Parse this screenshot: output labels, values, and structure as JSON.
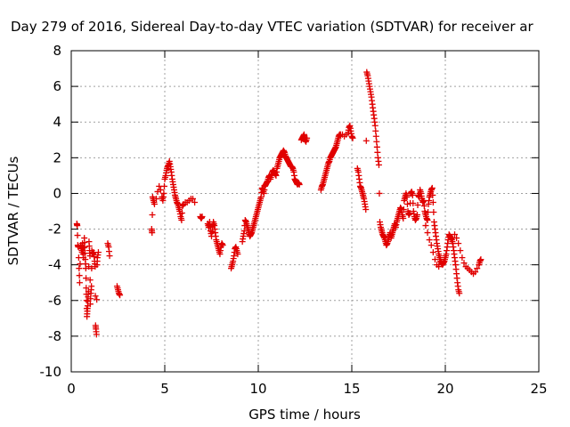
{
  "chart_data": {
    "type": "scatter",
    "title": "Day 279 of 2016, Sidereal Day-to-day VTEC variation (SDTVAR) for receiver ar",
    "xlabel": "GPS time / hours",
    "ylabel": "SDTVAR / TECUs",
    "xlim": [
      0,
      25
    ],
    "ylim": [
      -10,
      8
    ],
    "xticks": [
      0,
      5,
      10,
      15,
      20,
      25
    ],
    "yticks": [
      -10,
      -8,
      -6,
      -4,
      -2,
      0,
      2,
      4,
      6,
      8
    ],
    "grid": true,
    "marker": "+",
    "series_color": "#e00000",
    "trace_points": [
      [
        0.3,
        -1.7
      ],
      [
        0.32,
        -1.8
      ],
      [
        0.35,
        -2.9
      ],
      [
        0.38,
        -3.0
      ],
      [
        0.42,
        -4.2
      ],
      [
        0.45,
        -5.0
      ],
      [
        0.5,
        -2.9
      ],
      [
        0.55,
        -3.1
      ],
      [
        0.58,
        -3.3
      ],
      [
        0.6,
        -2.8
      ],
      [
        0.62,
        -3.2
      ],
      [
        0.65,
        -3.6
      ],
      [
        0.7,
        -2.5
      ],
      [
        0.72,
        -3.0
      ],
      [
        0.75,
        -3.7
      ],
      [
        0.78,
        -4.2
      ],
      [
        0.8,
        -5.3
      ],
      [
        0.82,
        -6.0
      ],
      [
        0.84,
        -6.9
      ],
      [
        0.86,
        -6.6
      ],
      [
        0.88,
        -6.3
      ],
      [
        0.9,
        -5.8
      ],
      [
        0.92,
        -5.5
      ],
      [
        0.95,
        -2.7
      ],
      [
        0.98,
        -3.2
      ],
      [
        1.0,
        -3.5
      ],
      [
        1.02,
        -6.2
      ],
      [
        1.05,
        -5.6
      ],
      [
        1.08,
        -5.2
      ],
      [
        1.1,
        -3.2
      ],
      [
        1.15,
        -3.4
      ],
      [
        1.2,
        -3.3
      ],
      [
        1.25,
        -3.8
      ],
      [
        1.28,
        -4.1
      ],
      [
        1.3,
        -7.4
      ],
      [
        1.32,
        -7.6
      ],
      [
        1.35,
        -7.9
      ],
      [
        1.38,
        -4.0
      ],
      [
        1.4,
        -3.6
      ],
      [
        1.45,
        -3.3
      ],
      [
        1.95,
        -2.8
      ],
      [
        2.0,
        -3.0
      ],
      [
        2.05,
        -3.5
      ],
      [
        2.45,
        -5.2
      ],
      [
        2.5,
        -5.4
      ],
      [
        2.55,
        -5.6
      ],
      [
        2.6,
        -5.7
      ],
      [
        4.3,
        -2.0
      ],
      [
        4.32,
        -2.2
      ],
      [
        4.35,
        -0.2
      ],
      [
        4.4,
        -0.4
      ],
      [
        4.45,
        -0.6
      ],
      [
        4.55,
        -0.3
      ],
      [
        4.62,
        0.1
      ],
      [
        4.7,
        0.4
      ],
      [
        4.78,
        0.2
      ],
      [
        4.85,
        -0.2
      ],
      [
        4.9,
        -0.4
      ],
      [
        4.95,
        0.0
      ],
      [
        5.0,
        0.8
      ],
      [
        5.05,
        1.0
      ],
      [
        5.1,
        1.3
      ],
      [
        5.15,
        1.5
      ],
      [
        5.2,
        1.6
      ],
      [
        5.25,
        1.8
      ],
      [
        5.3,
        1.5
      ],
      [
        5.35,
        1.2
      ],
      [
        5.4,
        0.8
      ],
      [
        5.45,
        0.5
      ],
      [
        5.5,
        0.2
      ],
      [
        5.55,
        -0.1
      ],
      [
        5.6,
        -0.3
      ],
      [
        5.65,
        -0.5
      ],
      [
        5.7,
        -0.6
      ],
      [
        5.75,
        -0.8
      ],
      [
        5.8,
        -1.0
      ],
      [
        5.85,
        -1.3
      ],
      [
        5.9,
        -1.5
      ],
      [
        5.95,
        -0.7
      ],
      [
        6.0,
        -0.6
      ],
      [
        6.1,
        -0.5
      ],
      [
        6.2,
        -0.5
      ],
      [
        6.3,
        -0.4
      ],
      [
        6.4,
        -0.3
      ],
      [
        6.5,
        -0.3
      ],
      [
        6.6,
        -0.5
      ],
      [
        6.9,
        -1.3
      ],
      [
        6.95,
        -1.4
      ],
      [
        7.0,
        -1.3
      ],
      [
        7.3,
        -1.7
      ],
      [
        7.35,
        -1.9
      ],
      [
        7.4,
        -1.6
      ],
      [
        7.45,
        -2.1
      ],
      [
        7.5,
        -2.4
      ],
      [
        7.55,
        -1.9
      ],
      [
        7.6,
        -1.6
      ],
      [
        7.65,
        -1.8
      ],
      [
        7.7,
        -2.2
      ],
      [
        7.75,
        -2.6
      ],
      [
        7.8,
        -2.8
      ],
      [
        7.85,
        -3.0
      ],
      [
        7.9,
        -3.2
      ],
      [
        7.95,
        -3.4
      ],
      [
        8.0,
        -3.0
      ],
      [
        8.05,
        -2.8
      ],
      [
        8.1,
        -2.9
      ],
      [
        8.55,
        -4.2
      ],
      [
        8.6,
        -4.0
      ],
      [
        8.65,
        -3.8
      ],
      [
        8.7,
        -3.5
      ],
      [
        8.75,
        -3.1
      ],
      [
        8.8,
        -3.0
      ],
      [
        8.85,
        -3.2
      ],
      [
        8.9,
        -3.4
      ],
      [
        9.15,
        -2.7
      ],
      [
        9.2,
        -2.4
      ],
      [
        9.25,
        -2.1
      ],
      [
        9.3,
        -1.5
      ],
      [
        9.35,
        -1.6
      ],
      [
        9.4,
        -1.8
      ],
      [
        9.45,
        -2.0
      ],
      [
        9.5,
        -2.2
      ],
      [
        9.55,
        -2.4
      ],
      [
        9.6,
        -2.3
      ],
      [
        9.65,
        -2.2
      ],
      [
        9.7,
        -2.0
      ],
      [
        9.75,
        -1.8
      ],
      [
        9.8,
        -1.6
      ],
      [
        9.85,
        -1.4
      ],
      [
        9.9,
        -1.2
      ],
      [
        9.95,
        -1.0
      ],
      [
        10.0,
        -0.8
      ],
      [
        10.05,
        -0.6
      ],
      [
        10.1,
        -0.4
      ],
      [
        10.15,
        -0.2
      ],
      [
        10.2,
        0.3
      ],
      [
        10.25,
        0.2
      ],
      [
        10.3,
        0.0
      ],
      [
        10.35,
        0.4
      ],
      [
        10.4,
        0.5
      ],
      [
        10.45,
        0.6
      ],
      [
        10.5,
        0.7
      ],
      [
        10.55,
        0.9
      ],
      [
        10.6,
        1.0
      ],
      [
        10.65,
        0.8
      ],
      [
        10.7,
        1.0
      ],
      [
        10.75,
        1.2
      ],
      [
        10.8,
        1.3
      ],
      [
        10.85,
        1.2
      ],
      [
        10.9,
        1.1
      ],
      [
        10.95,
        1.0
      ],
      [
        11.0,
        1.4
      ],
      [
        11.05,
        1.6
      ],
      [
        11.1,
        1.8
      ],
      [
        11.15,
        2.0
      ],
      [
        11.2,
        2.1
      ],
      [
        11.25,
        2.2
      ],
      [
        11.3,
        2.3
      ],
      [
        11.35,
        2.4
      ],
      [
        11.4,
        2.3
      ],
      [
        11.45,
        2.1
      ],
      [
        11.5,
        2.0
      ],
      [
        11.55,
        1.9
      ],
      [
        11.6,
        1.8
      ],
      [
        11.65,
        1.7
      ],
      [
        11.7,
        1.6
      ],
      [
        11.75,
        1.5
      ],
      [
        11.8,
        1.5
      ],
      [
        11.85,
        1.4
      ],
      [
        11.9,
        1.2
      ],
      [
        11.95,
        0.8
      ],
      [
        12.0,
        0.7
      ],
      [
        12.05,
        0.6
      ],
      [
        12.1,
        0.5
      ],
      [
        12.15,
        0.6
      ],
      [
        12.2,
        0.5
      ],
      [
        12.3,
        3.0
      ],
      [
        12.35,
        3.1
      ],
      [
        12.4,
        3.2
      ],
      [
        12.45,
        3.3
      ],
      [
        12.5,
        3.0
      ],
      [
        12.55,
        2.9
      ],
      [
        12.6,
        3.1
      ],
      [
        13.35,
        0.2
      ],
      [
        13.4,
        0.4
      ],
      [
        13.45,
        0.5
      ],
      [
        13.5,
        0.7
      ],
      [
        13.55,
        0.9
      ],
      [
        13.6,
        1.1
      ],
      [
        13.65,
        1.3
      ],
      [
        13.7,
        1.5
      ],
      [
        13.75,
        1.7
      ],
      [
        13.8,
        1.8
      ],
      [
        13.85,
        2.0
      ],
      [
        13.9,
        2.1
      ],
      [
        13.95,
        2.2
      ],
      [
        14.0,
        2.3
      ],
      [
        14.05,
        2.4
      ],
      [
        14.1,
        2.5
      ],
      [
        14.15,
        2.6
      ],
      [
        14.2,
        2.8
      ],
      [
        14.25,
        3.0
      ],
      [
        14.3,
        3.2
      ],
      [
        14.35,
        3.3
      ],
      [
        14.4,
        3.3
      ],
      [
        14.5,
        3.3
      ],
      [
        14.6,
        3.2
      ],
      [
        14.7,
        3.3
      ],
      [
        14.8,
        3.4
      ],
      [
        14.85,
        3.7
      ],
      [
        14.9,
        3.8
      ],
      [
        14.95,
        3.5
      ],
      [
        15.0,
        3.2
      ],
      [
        15.05,
        3.1
      ],
      [
        15.3,
        1.4
      ],
      [
        15.35,
        1.2
      ],
      [
        15.4,
        0.8
      ],
      [
        15.45,
        0.4
      ],
      [
        15.5,
        0.3
      ],
      [
        15.55,
        0.1
      ],
      [
        15.6,
        -0.1
      ],
      [
        15.65,
        -0.3
      ],
      [
        15.7,
        -0.6
      ],
      [
        15.75,
        -0.9
      ],
      [
        15.8,
        6.8
      ],
      [
        15.85,
        6.6
      ],
      [
        15.9,
        6.3
      ],
      [
        15.95,
        6.0
      ],
      [
        16.0,
        5.7
      ],
      [
        16.05,
        5.4
      ],
      [
        16.1,
        5.0
      ],
      [
        16.15,
        4.6
      ],
      [
        16.2,
        4.2
      ],
      [
        16.25,
        3.8
      ],
      [
        16.3,
        3.2
      ],
      [
        16.35,
        2.6
      ],
      [
        16.4,
        2.0
      ],
      [
        16.45,
        1.6
      ],
      [
        16.5,
        -1.6
      ],
      [
        16.55,
        -1.9
      ],
      [
        16.6,
        -2.1
      ],
      [
        16.65,
        -2.3
      ],
      [
        16.7,
        -2.4
      ],
      [
        16.75,
        -2.5
      ],
      [
        16.8,
        -2.7
      ],
      [
        16.85,
        -2.9
      ],
      [
        16.9,
        -2.8
      ],
      [
        16.95,
        -2.6
      ],
      [
        17.0,
        -2.4
      ],
      [
        17.05,
        -2.2
      ],
      [
        17.1,
        -2.5
      ],
      [
        17.15,
        -2.3
      ],
      [
        17.2,
        -2.1
      ],
      [
        17.25,
        -1.9
      ],
      [
        17.3,
        -1.7
      ],
      [
        17.35,
        -1.9
      ],
      [
        17.4,
        -1.6
      ],
      [
        17.45,
        -1.4
      ],
      [
        17.5,
        -1.2
      ],
      [
        17.55,
        -1.0
      ],
      [
        17.6,
        -0.8
      ],
      [
        17.65,
        -0.9
      ],
      [
        17.7,
        -1.2
      ],
      [
        17.75,
        -1.4
      ],
      [
        17.8,
        -0.4
      ],
      [
        17.85,
        -0.2
      ],
      [
        17.9,
        0.0
      ],
      [
        17.95,
        -0.2
      ],
      [
        18.0,
        -1.0
      ],
      [
        18.05,
        -1.2
      ],
      [
        18.1,
        -1.1
      ],
      [
        18.15,
        0.0
      ],
      [
        18.2,
        0.1
      ],
      [
        18.25,
        -0.1
      ],
      [
        18.3,
        -1.0
      ],
      [
        18.35,
        -1.3
      ],
      [
        18.4,
        -1.5
      ],
      [
        18.45,
        -1.4
      ],
      [
        18.5,
        -1.2
      ],
      [
        18.55,
        -0.1
      ],
      [
        18.6,
        -0.2
      ],
      [
        18.65,
        0.2
      ],
      [
        18.7,
        0.0
      ],
      [
        18.75,
        -0.3
      ],
      [
        18.8,
        -0.5
      ],
      [
        18.85,
        -0.4
      ],
      [
        18.9,
        -1.0
      ],
      [
        18.95,
        -1.2
      ],
      [
        19.0,
        -1.4
      ],
      [
        19.05,
        -1.5
      ],
      [
        19.1,
        -0.6
      ],
      [
        19.15,
        -0.2
      ],
      [
        19.2,
        0.0
      ],
      [
        19.25,
        0.2
      ],
      [
        19.3,
        0.3
      ],
      [
        19.35,
        -0.5
      ],
      [
        19.4,
        -1.6
      ],
      [
        19.45,
        -2.0
      ],
      [
        19.5,
        -2.4
      ],
      [
        19.55,
        -2.8
      ],
      [
        19.6,
        -3.1
      ],
      [
        19.65,
        -3.4
      ],
      [
        19.7,
        -3.6
      ],
      [
        19.75,
        -3.8
      ],
      [
        19.8,
        -3.9
      ],
      [
        19.85,
        -4.0
      ],
      [
        19.9,
        -3.9
      ],
      [
        19.95,
        -3.8
      ],
      [
        20.0,
        -3.6
      ],
      [
        20.05,
        -3.4
      ],
      [
        20.1,
        -3.0
      ],
      [
        20.15,
        -2.6
      ],
      [
        20.2,
        -2.3
      ],
      [
        20.25,
        -2.4
      ],
      [
        20.3,
        -2.5
      ],
      [
        20.35,
        -2.6
      ],
      [
        20.4,
        -2.8
      ],
      [
        20.45,
        -3.2
      ],
      [
        20.5,
        -3.6
      ],
      [
        20.55,
        -4.0
      ],
      [
        20.6,
        -4.5
      ],
      [
        20.65,
        -5.0
      ],
      [
        20.7,
        -5.4
      ],
      [
        20.75,
        -5.6
      ],
      [
        18.95,
        -1.8
      ],
      [
        19.05,
        -2.2
      ],
      [
        19.15,
        -2.6
      ],
      [
        19.25,
        -2.9
      ],
      [
        19.35,
        -3.3
      ],
      [
        19.45,
        -3.7
      ],
      [
        19.55,
        -4.0
      ],
      [
        19.65,
        -4.1
      ],
      [
        20.5,
        -2.3
      ],
      [
        20.6,
        -2.5
      ],
      [
        20.7,
        -2.8
      ],
      [
        20.8,
        -3.2
      ],
      [
        20.9,
        -3.6
      ],
      [
        21.0,
        -3.9
      ],
      [
        21.1,
        -4.1
      ],
      [
        21.2,
        -4.2
      ],
      [
        21.3,
        -4.3
      ],
      [
        21.4,
        -4.4
      ],
      [
        21.5,
        -4.5
      ],
      [
        21.6,
        -4.4
      ],
      [
        21.7,
        -4.2
      ],
      [
        21.8,
        -4.0
      ],
      [
        21.85,
        -3.8
      ],
      [
        21.9,
        -3.7
      ]
    ]
  }
}
